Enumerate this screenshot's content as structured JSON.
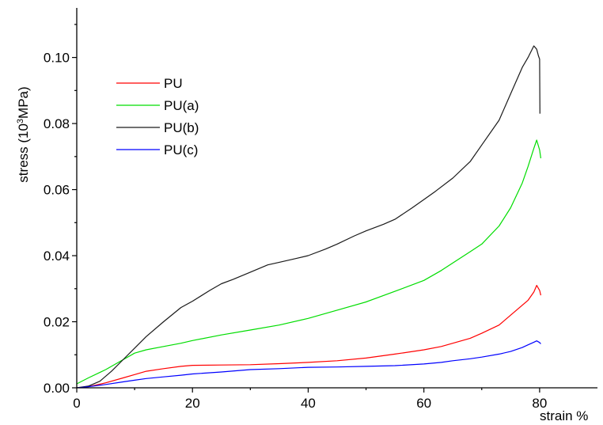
{
  "chart_data": {
    "type": "line",
    "title": "",
    "xlabel": "strain %",
    "ylabel_main": "stress (10",
    "ylabel_sup": "3",
    "ylabel_end": "MPa)",
    "xlim": [
      0,
      90
    ],
    "ylim": [
      0,
      0.115
    ],
    "x_ticks": [
      0,
      20,
      40,
      60,
      80
    ],
    "x_tick_labels": [
      "0",
      "20",
      "40",
      "60",
      "80"
    ],
    "y_ticks": [
      0.0,
      0.02,
      0.04,
      0.06,
      0.08,
      0.1
    ],
    "y_tick_labels": [
      "0.00",
      "0.02",
      "0.04",
      "0.06",
      "0.08",
      "0.10"
    ],
    "grid": false,
    "legend_position": "top-left",
    "series": [
      {
        "name": "PU",
        "color": "#ff0000",
        "points": [
          [
            0,
            0
          ],
          [
            2,
            0.0003
          ],
          [
            5,
            0.0015
          ],
          [
            8,
            0.003
          ],
          [
            10,
            0.004
          ],
          [
            12,
            0.005
          ],
          [
            15,
            0.0058
          ],
          [
            18,
            0.0065
          ],
          [
            20,
            0.0068
          ],
          [
            25,
            0.0069
          ],
          [
            30,
            0.007
          ],
          [
            35,
            0.0073
          ],
          [
            40,
            0.0077
          ],
          [
            45,
            0.0082
          ],
          [
            50,
            0.009
          ],
          [
            55,
            0.0102
          ],
          [
            60,
            0.0115
          ],
          [
            63,
            0.0125
          ],
          [
            65,
            0.0135
          ],
          [
            68,
            0.015
          ],
          [
            70,
            0.0165
          ],
          [
            73,
            0.019
          ],
          [
            75,
            0.022
          ],
          [
            78,
            0.0265
          ],
          [
            79,
            0.029
          ],
          [
            79.5,
            0.031
          ],
          [
            80,
            0.0295
          ],
          [
            80.2,
            0.028
          ]
        ]
      },
      {
        "name": "PU(a)",
        "color": "#00dd00",
        "points": [
          [
            0,
            0.0012
          ],
          [
            2,
            0.003
          ],
          [
            5,
            0.0055
          ],
          [
            8,
            0.0085
          ],
          [
            10,
            0.0105
          ],
          [
            12,
            0.0115
          ],
          [
            15,
            0.0125
          ],
          [
            18,
            0.0135
          ],
          [
            20,
            0.0143
          ],
          [
            25,
            0.016
          ],
          [
            30,
            0.0175
          ],
          [
            35,
            0.019
          ],
          [
            40,
            0.021
          ],
          [
            45,
            0.0235
          ],
          [
            50,
            0.026
          ],
          [
            55,
            0.0292
          ],
          [
            60,
            0.0325
          ],
          [
            63,
            0.0355
          ],
          [
            65,
            0.0378
          ],
          [
            68,
            0.0412
          ],
          [
            70,
            0.0435
          ],
          [
            73,
            0.049
          ],
          [
            75,
            0.0545
          ],
          [
            77,
            0.062
          ],
          [
            78,
            0.067
          ],
          [
            79,
            0.0725
          ],
          [
            79.5,
            0.075
          ],
          [
            80,
            0.072
          ],
          [
            80.2,
            0.0695
          ]
        ]
      },
      {
        "name": "PU(b)",
        "color": "#1a1a1a",
        "points": [
          [
            0,
            0
          ],
          [
            2,
            0.0005
          ],
          [
            4,
            0.002
          ],
          [
            6,
            0.005
          ],
          [
            8,
            0.0085
          ],
          [
            10,
            0.012
          ],
          [
            12,
            0.0155
          ],
          [
            15,
            0.02
          ],
          [
            18,
            0.0243
          ],
          [
            20,
            0.0262
          ],
          [
            23,
            0.0295
          ],
          [
            25,
            0.0315
          ],
          [
            27,
            0.0328
          ],
          [
            30,
            0.035
          ],
          [
            33,
            0.0372
          ],
          [
            35,
            0.038
          ],
          [
            38,
            0.0392
          ],
          [
            40,
            0.04
          ],
          [
            43,
            0.042
          ],
          [
            45,
            0.0435
          ],
          [
            48,
            0.046
          ],
          [
            50,
            0.0475
          ],
          [
            53,
            0.0495
          ],
          [
            55,
            0.051
          ],
          [
            58,
            0.0545
          ],
          [
            60,
            0.057
          ],
          [
            62,
            0.0595
          ],
          [
            65,
            0.0635
          ],
          [
            68,
            0.0685
          ],
          [
            70,
            0.0735
          ],
          [
            73,
            0.081
          ],
          [
            75,
            0.089
          ],
          [
            77,
            0.097
          ],
          [
            78,
            0.1
          ],
          [
            79,
            0.1035
          ],
          [
            79.5,
            0.1025
          ],
          [
            79.8,
            0.1005
          ],
          [
            80,
            0.0995
          ],
          [
            80.05,
            0.083
          ]
        ]
      },
      {
        "name": "PU(c)",
        "color": "#0000ff",
        "points": [
          [
            0,
            0
          ],
          [
            2,
            0.0003
          ],
          [
            5,
            0.001
          ],
          [
            8,
            0.0018
          ],
          [
            10,
            0.0023
          ],
          [
            12,
            0.0028
          ],
          [
            15,
            0.0033
          ],
          [
            18,
            0.0038
          ],
          [
            20,
            0.0042
          ],
          [
            25,
            0.0048
          ],
          [
            30,
            0.0055
          ],
          [
            35,
            0.0058
          ],
          [
            40,
            0.0062
          ],
          [
            45,
            0.0063
          ],
          [
            50,
            0.0065
          ],
          [
            55,
            0.0067
          ],
          [
            60,
            0.0072
          ],
          [
            63,
            0.0077
          ],
          [
            65,
            0.0082
          ],
          [
            68,
            0.0088
          ],
          [
            70,
            0.0093
          ],
          [
            73,
            0.0102
          ],
          [
            75,
            0.011
          ],
          [
            77,
            0.0122
          ],
          [
            78,
            0.013
          ],
          [
            79,
            0.0138
          ],
          [
            79.5,
            0.0142
          ],
          [
            80,
            0.0137
          ],
          [
            80.2,
            0.0133
          ]
        ]
      }
    ]
  }
}
